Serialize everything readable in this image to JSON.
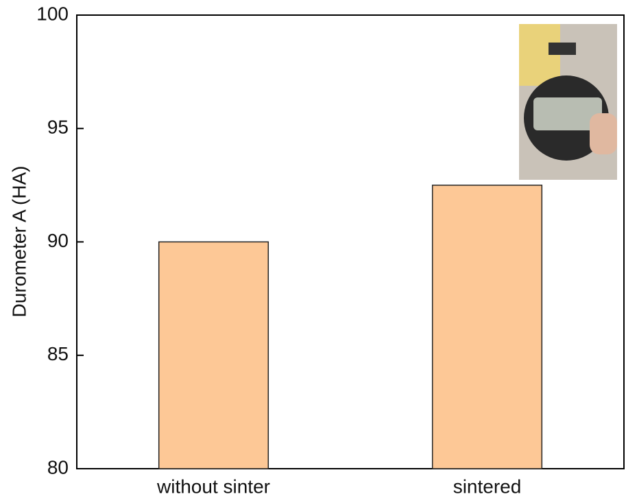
{
  "chart_data": {
    "type": "bar",
    "y_label": "Durometer A (HA)",
    "categories": [
      "without sinter",
      "sintered"
    ],
    "values": [
      90,
      92.5
    ],
    "color": "#fdc896",
    "ylim": [
      80,
      100
    ],
    "yticks": [
      80,
      85,
      90,
      95,
      100
    ],
    "grid": false
  }
}
